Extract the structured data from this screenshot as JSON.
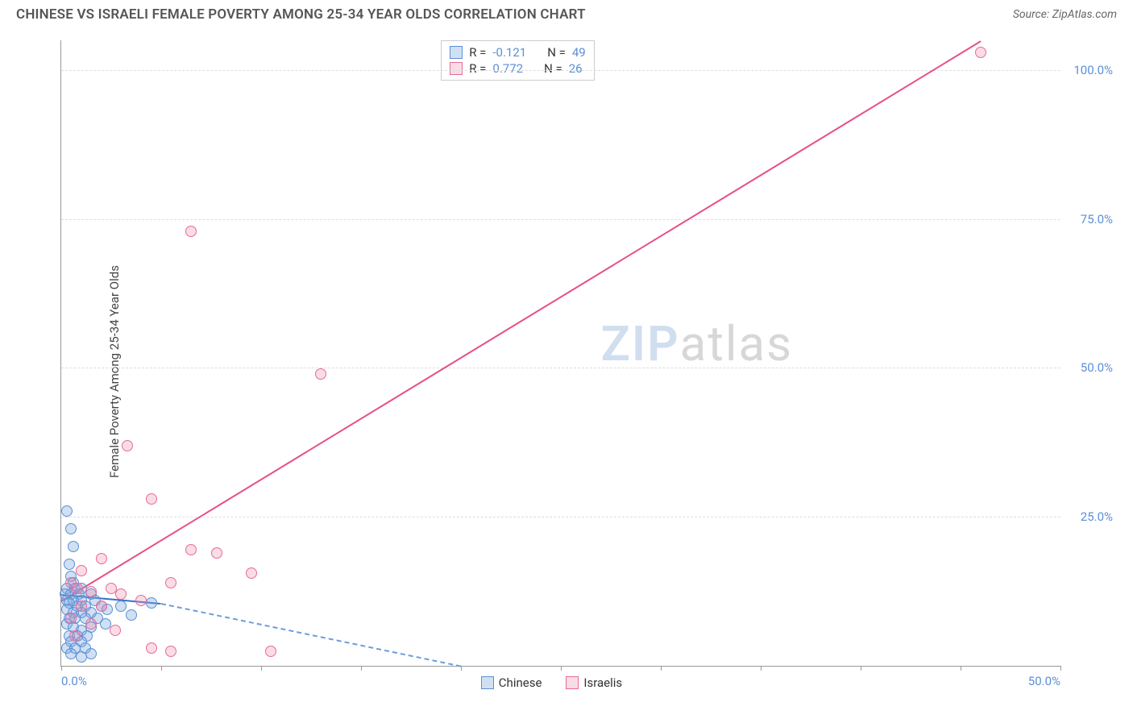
{
  "title": "CHINESE VS ISRAELI FEMALE POVERTY AMONG 25-34 YEAR OLDS CORRELATION CHART",
  "source_prefix": "Source: ",
  "source_name": "ZipAtlas.com",
  "ylabel": "Female Poverty Among 25-34 Year Olds",
  "watermark": {
    "zip": "ZIP",
    "atlas": "atlas"
  },
  "chart": {
    "type": "scatter",
    "background_color": "#ffffff",
    "axis_color": "#999999",
    "grid_color": "#dddddd",
    "tick_label_color": "#5b8fd6",
    "xlim": [
      0,
      50
    ],
    "ylim": [
      0,
      105
    ],
    "x_ticks": [
      0,
      5,
      10,
      15,
      20,
      25,
      30,
      35,
      40,
      45,
      50
    ],
    "x_tick_labels": {
      "0": "0.0%",
      "50": "50.0%"
    },
    "y_ticks": [
      25,
      50,
      75,
      100
    ],
    "y_tick_labels": {
      "25": "25.0%",
      "50": "50.0%",
      "75": "75.0%",
      "100": "100.0%"
    },
    "marker_radius": 7,
    "marker_border_width": 1.5,
    "series": [
      {
        "name": "Chinese",
        "fill": "rgba(120,165,220,0.35)",
        "stroke": "#5b8fd6",
        "r_label": "R = ",
        "r_value": "-0.121",
        "n_label": "N = ",
        "n_value": "49",
        "trend": {
          "x1": 0,
          "y1": 12,
          "x2": 5,
          "y2": 10.5,
          "solid": true,
          "color": "#3f73c4"
        },
        "trend_ext": {
          "x1": 5,
          "y1": 10.5,
          "x2": 20,
          "y2": 0,
          "solid": false,
          "color": "#6a9edb"
        },
        "points": [
          [
            0.3,
            26
          ],
          [
            0.5,
            23
          ],
          [
            0.6,
            20
          ],
          [
            0.4,
            17
          ],
          [
            0.5,
            15
          ],
          [
            0.6,
            14
          ],
          [
            0.3,
            13
          ],
          [
            0.7,
            13
          ],
          [
            1.0,
            13
          ],
          [
            0.2,
            12
          ],
          [
            0.5,
            12
          ],
          [
            0.9,
            12
          ],
          [
            1.5,
            12
          ],
          [
            0.3,
            11
          ],
          [
            0.6,
            11
          ],
          [
            1.0,
            11
          ],
          [
            1.7,
            11
          ],
          [
            0.4,
            10.5
          ],
          [
            0.8,
            10
          ],
          [
            1.2,
            10
          ],
          [
            2.0,
            10
          ],
          [
            0.3,
            9.5
          ],
          [
            0.6,
            9
          ],
          [
            1.0,
            9
          ],
          [
            1.5,
            9
          ],
          [
            2.3,
            9.5
          ],
          [
            3.0,
            10
          ],
          [
            4.5,
            10.5
          ],
          [
            0.4,
            8
          ],
          [
            0.7,
            8
          ],
          [
            1.2,
            8
          ],
          [
            1.8,
            8
          ],
          [
            0.3,
            7
          ],
          [
            0.6,
            6.5
          ],
          [
            1.0,
            6
          ],
          [
            1.5,
            6.5
          ],
          [
            2.2,
            7
          ],
          [
            3.5,
            8.5
          ],
          [
            0.4,
            5
          ],
          [
            0.8,
            5
          ],
          [
            1.3,
            5
          ],
          [
            0.5,
            4
          ],
          [
            1.0,
            4
          ],
          [
            0.3,
            3
          ],
          [
            0.7,
            3
          ],
          [
            1.2,
            3
          ],
          [
            0.5,
            2
          ],
          [
            1.0,
            1.5
          ],
          [
            1.5,
            2
          ]
        ]
      },
      {
        "name": "Israelis",
        "fill": "rgba(240,140,170,0.30)",
        "stroke": "#e76a9a",
        "r_label": "R = ",
        "r_value": "0.772",
        "n_label": "N = ",
        "n_value": "26",
        "trend": {
          "x1": 0,
          "y1": 11,
          "x2": 46,
          "y2": 105,
          "solid": true,
          "color": "#e84e8a"
        },
        "points": [
          [
            46,
            103
          ],
          [
            6.5,
            73
          ],
          [
            13,
            49
          ],
          [
            3.3,
            37
          ],
          [
            4.5,
            28
          ],
          [
            6.5,
            19.5
          ],
          [
            7.8,
            19
          ],
          [
            9.5,
            15.5
          ],
          [
            5.5,
            14
          ],
          [
            2.0,
            18
          ],
          [
            1.0,
            16
          ],
          [
            0.5,
            14
          ],
          [
            0.8,
            13
          ],
          [
            2.5,
            13
          ],
          [
            1.5,
            12.5
          ],
          [
            3.0,
            12
          ],
          [
            4.0,
            11
          ],
          [
            1.0,
            10
          ],
          [
            2.0,
            10
          ],
          [
            0.5,
            8
          ],
          [
            1.5,
            7
          ],
          [
            2.7,
            6
          ],
          [
            4.5,
            3
          ],
          [
            5.5,
            2.5
          ],
          [
            10.5,
            2.5
          ],
          [
            0.7,
            5
          ]
        ]
      }
    ]
  },
  "legend": [
    {
      "label": "Chinese",
      "fill": "rgba(120,165,220,0.35)",
      "stroke": "#5b8fd6"
    },
    {
      "label": "Israelis",
      "fill": "rgba(240,140,170,0.30)",
      "stroke": "#e76a9a"
    }
  ]
}
